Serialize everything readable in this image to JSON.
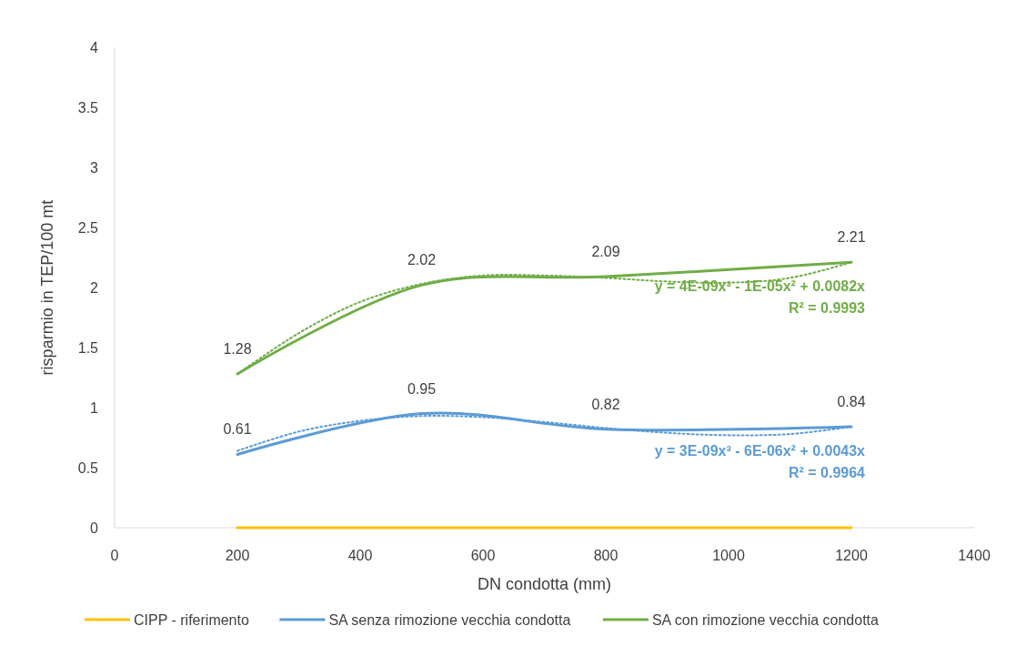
{
  "chart_data": {
    "type": "line",
    "xlabel": "DN condotta (mm)",
    "ylabel": "risparmio in TEP/100 mt",
    "xlim": [
      0,
      1400
    ],
    "xticks": [
      0,
      200,
      400,
      600,
      800,
      1000,
      1200,
      1400
    ],
    "ylim": [
      0,
      4
    ],
    "yticks": [
      0,
      0.5,
      1,
      1.5,
      2,
      2.5,
      3,
      3.5,
      4
    ],
    "grid": false,
    "legend": "bottom",
    "marker": "none",
    "series": [
      {
        "name": "CIPP - riferimento",
        "color": "#ffc000",
        "x": [
          200,
          500,
          800,
          1200
        ],
        "values": [
          0,
          0,
          0,
          0
        ],
        "line_style": "solid"
      },
      {
        "name": "SA senza rimozione vecchia condotta",
        "color": "#5b9bd5",
        "x": [
          200,
          500,
          800,
          1200
        ],
        "values": [
          0.61,
          0.95,
          0.82,
          0.84
        ],
        "value_labels": [
          "0.61",
          "0.95",
          "0.82",
          "0.84"
        ],
        "line_style": "solid"
      },
      {
        "name": "SA con rimozione vecchia condotta",
        "color": "#70ad47",
        "x": [
          200,
          500,
          800,
          1200
        ],
        "values": [
          1.28,
          2.02,
          2.09,
          2.21
        ],
        "value_labels": [
          "1.28",
          "2.02",
          "2.09",
          "2.21"
        ],
        "line_style": "solid"
      },
      {
        "color": "#5b9bd5",
        "x": [
          200,
          300,
          400,
          500,
          600,
          700,
          800,
          900,
          1000,
          1100,
          1200
        ],
        "values": [
          0.64,
          0.8,
          0.89,
          0.93,
          0.92,
          0.88,
          0.83,
          0.79,
          0.77,
          0.78,
          0.84
        ],
        "line_style": "dotted"
      },
      {
        "color": "#70ad47",
        "x": [
          200,
          300,
          400,
          500,
          600,
          700,
          800,
          900,
          1000,
          1100,
          1200
        ],
        "values": [
          1.28,
          1.62,
          1.88,
          2.03,
          2.1,
          2.1,
          2.08,
          2.05,
          2.04,
          2.08,
          2.21
        ],
        "line_style": "dotted"
      }
    ],
    "annotations": [
      "y = 4E-09x³ - 1E-05x² + 0.0082x",
      "R² = 0.9993",
      "y = 3E-09x³ - 6E-06x² + 0.0043x",
      "R² = 0.9964"
    ]
  }
}
